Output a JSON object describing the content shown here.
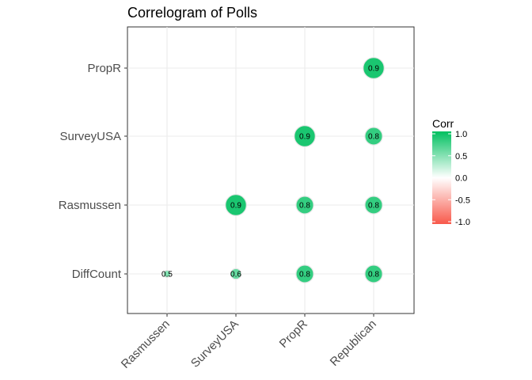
{
  "chart_data": {
    "type": "scatter",
    "title": "Correlogram of Polls",
    "x_categories": [
      "Rasmussen",
      "SurveyUSA",
      "PropR",
      "Republican"
    ],
    "y_categories": [
      "DiffCount",
      "Rasmussen",
      "SurveyUSA",
      "PropR"
    ],
    "points": [
      {
        "x": "Republican",
        "y": "PropR",
        "value": 0.9,
        "label": "0.9"
      },
      {
        "x": "PropR",
        "y": "SurveyUSA",
        "value": 0.9,
        "label": "0.9"
      },
      {
        "x": "Republican",
        "y": "SurveyUSA",
        "value": 0.8,
        "label": "0.8"
      },
      {
        "x": "SurveyUSA",
        "y": "Rasmussen",
        "value": 0.9,
        "label": "0.9"
      },
      {
        "x": "PropR",
        "y": "Rasmussen",
        "value": 0.8,
        "label": "0.8"
      },
      {
        "x": "Republican",
        "y": "Rasmussen",
        "value": 0.8,
        "label": "0.8"
      },
      {
        "x": "Rasmussen",
        "y": "DiffCount",
        "value": 0.5,
        "label": "0.5"
      },
      {
        "x": "SurveyUSA",
        "y": "DiffCount",
        "value": 0.6,
        "label": "0.6"
      },
      {
        "x": "PropR",
        "y": "DiffCount",
        "value": 0.8,
        "label": "0.8"
      },
      {
        "x": "Republican",
        "y": "DiffCount",
        "value": 0.8,
        "label": "0.8"
      }
    ],
    "legend": {
      "title": "Corr",
      "ticks": [
        {
          "value": 1.0,
          "label": "1.0"
        },
        {
          "value": 0.5,
          "label": "0.5"
        },
        {
          "value": 0.0,
          "label": "0.0"
        },
        {
          "value": -0.5,
          "label": "-0.5"
        },
        {
          "value": -1.0,
          "label": "-1.0"
        }
      ],
      "placement": "right"
    },
    "colors": {
      "high": "#00c060",
      "mid": "#ffffff",
      "low": "#f8584a"
    },
    "grid": true
  }
}
